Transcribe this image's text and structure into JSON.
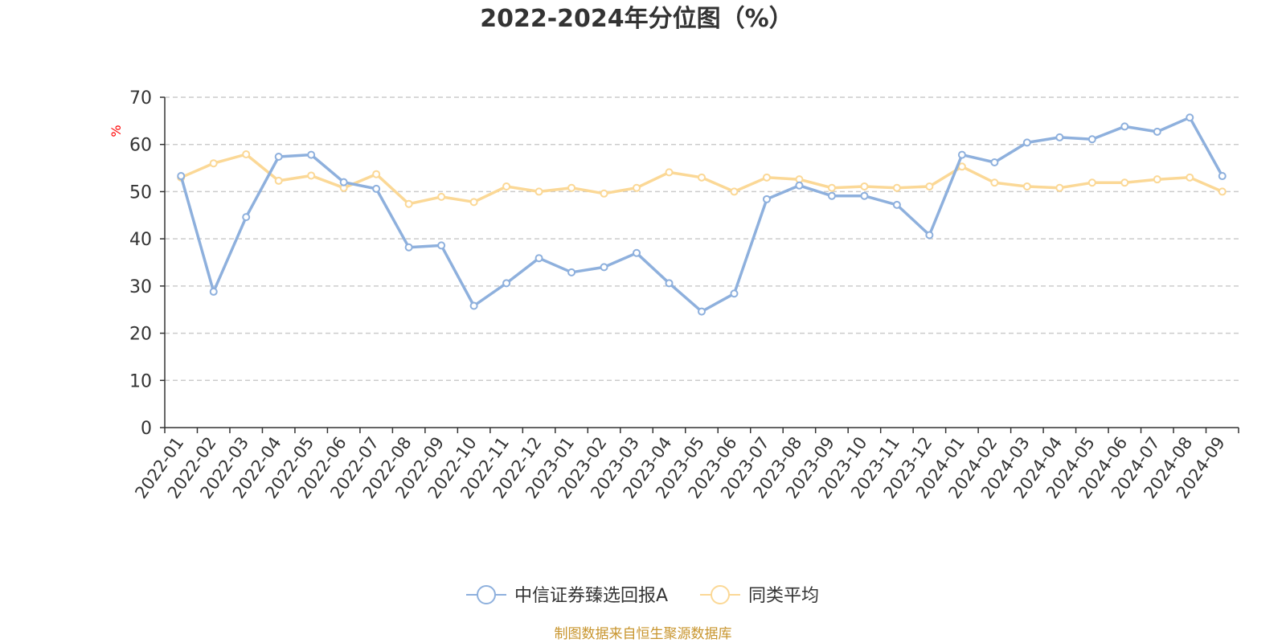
{
  "chart_data": {
    "type": "line",
    "title": "2022-2024年分位图（%）",
    "ylabel": "%",
    "ylabel_color": "#ff0000",
    "ylim": [
      0,
      70
    ],
    "yticks": [
      "0",
      "10",
      "20",
      "30",
      "40",
      "50",
      "60",
      "70"
    ],
    "grid": true,
    "legend_position": "bottom-center",
    "categories": [
      "2022-01",
      "2022-02",
      "2022-03",
      "2022-04",
      "2022-05",
      "2022-06",
      "2022-07",
      "2022-08",
      "2022-09",
      "2022-10",
      "2022-11",
      "2022-12",
      "2023-01",
      "2023-02",
      "2023-03",
      "2023-04",
      "2023-05",
      "2023-06",
      "2023-07",
      "2023-08",
      "2023-09",
      "2023-10",
      "2023-11",
      "2023-12",
      "2024-01",
      "2024-02",
      "2024-03",
      "2024-04",
      "2024-05",
      "2024-06",
      "2024-07",
      "2024-08",
      "2024-09"
    ],
    "series": [
      {
        "name": "中信证券臻选回报A",
        "color": "#8eb0dd",
        "values": [
          53.3,
          28.8,
          44.6,
          57.4,
          57.8,
          52.0,
          50.6,
          38.2,
          38.6,
          25.8,
          30.6,
          35.9,
          32.9,
          34.0,
          37.0,
          30.6,
          24.6,
          28.4,
          48.4,
          51.3,
          49.1,
          49.1,
          47.2,
          40.8,
          57.8,
          56.2,
          60.4,
          61.5,
          61.1,
          63.8,
          62.7,
          65.7,
          53.3
        ]
      },
      {
        "name": "同类平均",
        "color": "#fbd896",
        "values": [
          53.0,
          56.0,
          57.9,
          52.3,
          53.4,
          50.8,
          53.7,
          47.4,
          48.9,
          47.8,
          51.1,
          50.0,
          50.8,
          49.6,
          50.8,
          54.1,
          53.0,
          50.0,
          53.0,
          52.6,
          50.8,
          51.1,
          50.8,
          51.1,
          55.3,
          51.9,
          51.1,
          50.8,
          51.9,
          51.9,
          52.6,
          53.0,
          50.0
        ]
      }
    ]
  },
  "footer": {
    "source": "制图数据来自恒生聚源数据库",
    "source_color": "#c8952e"
  }
}
